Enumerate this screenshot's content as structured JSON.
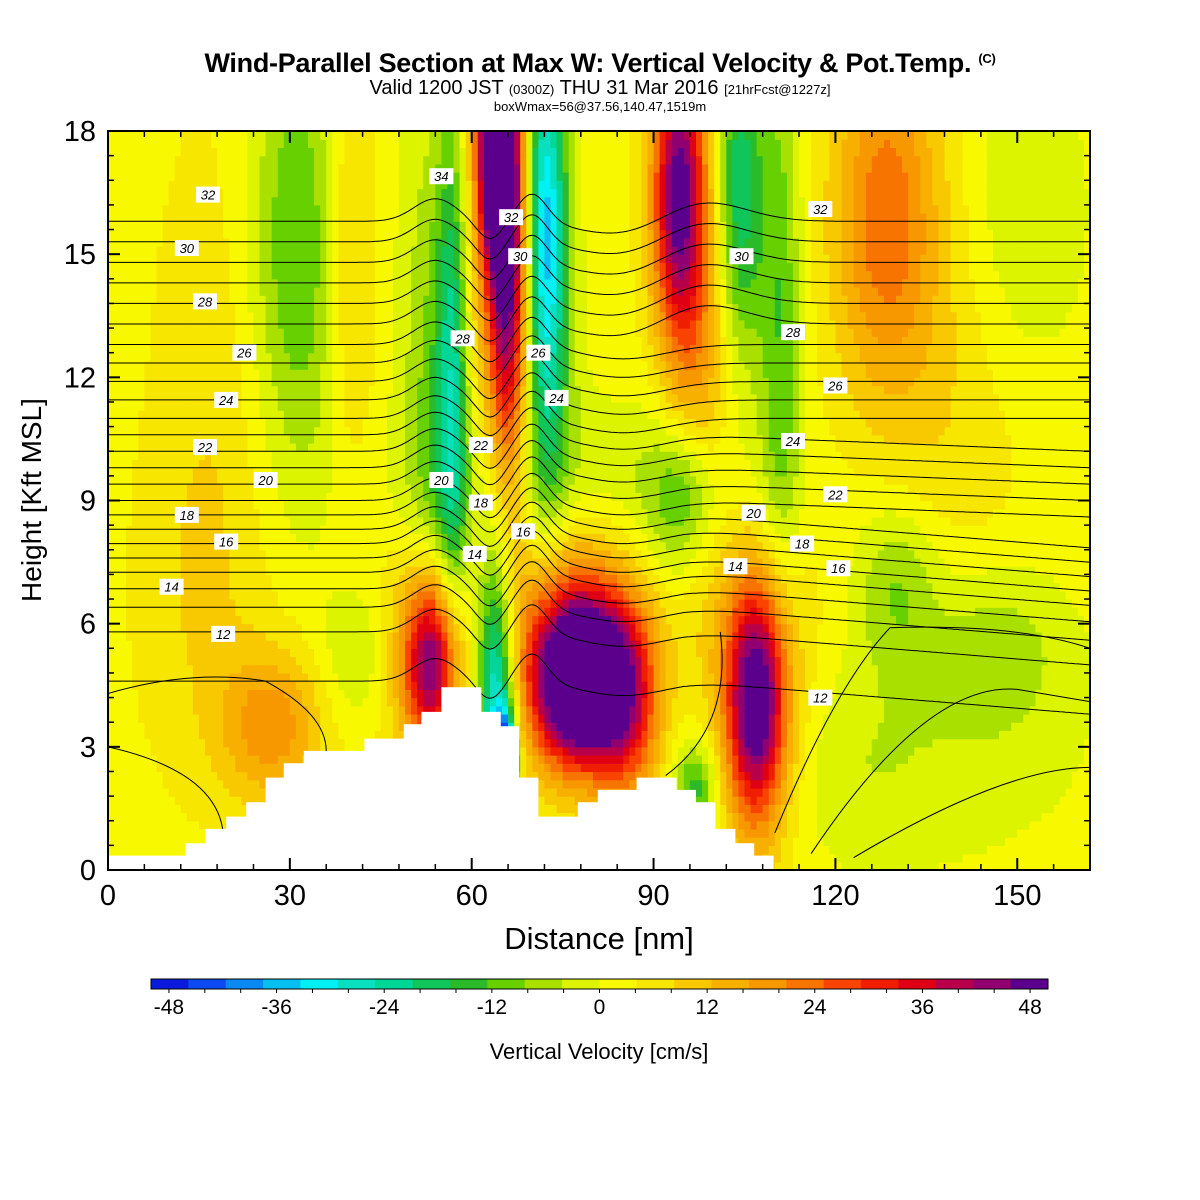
{
  "chart_data": {
    "type": "heatmap",
    "title": "Wind-Parallel Section at Max W: Vertical Velocity & Pot.Temp.",
    "title_mark": "(C)",
    "subtitle": {
      "prefix": "Valid 1200 JST",
      "utc": "(0300Z)",
      "date": "THU 31 Mar 2016",
      "forecast": "[21hrFcst@1227z]"
    },
    "box_info": "boxWmax=56@37.56,140.47,1519m",
    "xlabel": "Distance [nm]",
    "ylabel": "Height [Kft MSL]",
    "xlim": [
      0,
      162
    ],
    "ylim": [
      0,
      18
    ],
    "x_ticks": [
      0,
      30,
      60,
      90,
      120,
      150
    ],
    "y_ticks": [
      0,
      3,
      6,
      9,
      12,
      15,
      18
    ],
    "colorbar": {
      "label": "Vertical Velocity [cm/s]",
      "min": -50,
      "max": 50,
      "step": 4,
      "tick_values": [
        -48,
        -36,
        -24,
        -12,
        0,
        12,
        24,
        36,
        48
      ],
      "colors": [
        "#0a1adc",
        "#0a4af0",
        "#0a88f4",
        "#08c0f0",
        "#00f0f4",
        "#08e0c0",
        "#00d696",
        "#10c65a",
        "#2aba2a",
        "#66d000",
        "#aae000",
        "#dcf400",
        "#f8f800",
        "#f6e600",
        "#f8c800",
        "#f8b000",
        "#f89800",
        "#f87400",
        "#f84400",
        "#f01e00",
        "#e00014",
        "#b8004a",
        "#900070",
        "#5a008c"
      ]
    },
    "terrain": [
      [
        0,
        0.35
      ],
      [
        12.8,
        0.35
      ],
      [
        12.8,
        0.65
      ],
      [
        16,
        0.65
      ],
      [
        16,
        1.0
      ],
      [
        19.5,
        1.0
      ],
      [
        19.5,
        1.3
      ],
      [
        22.8,
        1.3
      ],
      [
        22.8,
        1.65
      ],
      [
        26,
        1.65
      ],
      [
        26,
        2.25
      ],
      [
        29,
        2.25
      ],
      [
        29,
        2.6
      ],
      [
        32.3,
        2.6
      ],
      [
        32.3,
        2.9
      ],
      [
        42.3,
        2.9
      ],
      [
        42.3,
        3.2
      ],
      [
        48.8,
        3.2
      ],
      [
        48.8,
        3.55
      ],
      [
        51.7,
        3.55
      ],
      [
        51.7,
        3.85
      ],
      [
        55,
        3.85
      ],
      [
        55,
        4.45
      ],
      [
        61.6,
        4.45
      ],
      [
        61.6,
        3.85
      ],
      [
        64.8,
        3.85
      ],
      [
        64.8,
        3.5
      ],
      [
        67.8,
        3.5
      ],
      [
        67.8,
        2.25
      ],
      [
        71,
        2.25
      ],
      [
        71,
        1.3
      ],
      [
        77.5,
        1.3
      ],
      [
        77.5,
        1.65
      ],
      [
        80.8,
        1.65
      ],
      [
        80.8,
        1.95
      ],
      [
        87.2,
        1.95
      ],
      [
        87.2,
        2.25
      ],
      [
        93.8,
        2.25
      ],
      [
        93.8,
        1.95
      ],
      [
        97,
        1.95
      ],
      [
        97,
        1.65
      ],
      [
        100.2,
        1.65
      ],
      [
        100.2,
        1.0
      ],
      [
        103.5,
        1.0
      ],
      [
        103.5,
        0.65
      ],
      [
        106.6,
        0.65
      ],
      [
        106.6,
        0.35
      ],
      [
        109.8,
        0.35
      ],
      [
        109.8,
        0
      ]
    ],
    "velocity_cells": [
      {
        "x": 78,
        "z": 4.6,
        "sx": 5,
        "sz": 1.3,
        "w": 56
      },
      {
        "x": 76,
        "z": 5.5,
        "sx": 7,
        "sz": 2.2,
        "w": 24
      },
      {
        "x": 53.5,
        "z": 5.0,
        "sx": 3.2,
        "sz": 1.5,
        "w": 40
      },
      {
        "x": 51,
        "z": 5.5,
        "sx": 5,
        "sz": 2.2,
        "w": 10
      },
      {
        "x": 107,
        "z": 4.0,
        "sx": 3.5,
        "sz": 2.0,
        "w": 44
      },
      {
        "x": 107,
        "z": 4.2,
        "sx": 7,
        "sz": 3.0,
        "w": 12
      },
      {
        "x": 86,
        "z": 4.0,
        "sx": 4,
        "sz": 1.8,
        "w": 26
      },
      {
        "x": 27,
        "z": 3.5,
        "sx": 6,
        "sz": 1.3,
        "w": 16
      },
      {
        "x": 64,
        "z": 4.4,
        "sx": 2.2,
        "sz": 2.4,
        "w": -34
      },
      {
        "x": 65.5,
        "z": 2.8,
        "sx": 1.2,
        "sz": 0.8,
        "w": -40
      },
      {
        "x": 97,
        "z": 2.0,
        "sx": 2.5,
        "sz": 0.8,
        "w": -16
      },
      {
        "x": 122,
        "z": 2.6,
        "sx": 25,
        "sz": 2.0,
        "w": -7
      },
      {
        "x": 146,
        "z": 5.5,
        "sx": 9,
        "sz": 1.5,
        "w": -9
      },
      {
        "x": 130,
        "z": 7.0,
        "sx": 5,
        "sz": 1.5,
        "w": -11
      },
      {
        "x": 95,
        "z": 9.0,
        "sx": 4,
        "sz": 1.3,
        "w": -14
      },
      {
        "x": 57,
        "z": 13.0,
        "sx": 2.0,
        "sz": 5.0,
        "w": -26
      },
      {
        "x": 54,
        "z": 11.5,
        "sx": 4,
        "sz": 6,
        "w": -12
      },
      {
        "x": 72,
        "z": 16.0,
        "sx": 2.4,
        "sz": 3.5,
        "w": -28
      },
      {
        "x": 73,
        "z": 13.0,
        "sx": 3,
        "sz": 4,
        "w": -12
      },
      {
        "x": 66,
        "z": 15.0,
        "sx": 2.4,
        "sz": 4.0,
        "w": 46
      },
      {
        "x": 64,
        "z": 17.5,
        "sx": 2.0,
        "sz": 1.8,
        "w": 50
      },
      {
        "x": 58.5,
        "z": 15.5,
        "sx": 3.0,
        "sz": 5.0,
        "w": 14
      },
      {
        "x": 94,
        "z": 16.5,
        "sx": 3.0,
        "sz": 2.5,
        "w": 40
      },
      {
        "x": 98,
        "z": 13.5,
        "sx": 4,
        "sz": 4,
        "w": 14
      },
      {
        "x": 104,
        "z": 16.5,
        "sx": 3.0,
        "sz": 3.0,
        "w": -24
      },
      {
        "x": 111,
        "z": 13.0,
        "sx": 2.5,
        "sz": 5,
        "w": -14
      },
      {
        "x": 128,
        "z": 16.0,
        "sx": 6,
        "sz": 3,
        "w": 18
      },
      {
        "x": 138,
        "z": 13.0,
        "sx": 10,
        "sz": 5,
        "w": 6
      },
      {
        "x": 150,
        "z": 16.0,
        "sx": 8,
        "sz": 3,
        "w": -8
      },
      {
        "x": 31,
        "z": 15.0,
        "sx": 6,
        "sz": 4,
        "w": -16
      },
      {
        "x": 40,
        "z": 15.0,
        "sx": 3,
        "sz": 4,
        "w": 10
      },
      {
        "x": 20,
        "z": 12.0,
        "sx": 8,
        "sz": 5,
        "w": 5
      },
      {
        "x": 78,
        "z": 9.5,
        "sx": 22,
        "sz": 1.5,
        "w": -7
      },
      {
        "x": 41,
        "z": 5.3,
        "sx": 4,
        "sz": 1.2,
        "w": -8
      },
      {
        "x": 14,
        "z": 6.5,
        "sx": 7,
        "sz": 3,
        "w": 4
      }
    ],
    "background_w": 0.5,
    "theta_contours": {
      "levels": [
        11,
        12,
        13,
        14,
        15,
        16,
        17,
        18,
        19,
        20,
        21,
        22,
        23,
        24,
        25,
        26,
        27,
        28,
        29,
        30,
        31,
        32,
        33,
        34,
        35
      ],
      "base_heights": [
        4.6,
        5.8,
        6.4,
        6.85,
        7.25,
        7.6,
        7.95,
        8.3,
        8.65,
        9.0,
        9.4,
        9.8,
        10.2,
        10.6,
        11.0,
        11.45,
        11.9,
        12.35,
        12.8,
        13.3,
        13.8,
        14.3,
        14.8,
        15.3,
        15.8
      ],
      "labels": [
        {
          "text": "12",
          "x": 19,
          "z": 5.75
        },
        {
          "text": "14",
          "x": 10.5,
          "z": 6.9
        },
        {
          "text": "16",
          "x": 19.5,
          "z": 8.0
        },
        {
          "text": "18",
          "x": 13,
          "z": 8.65
        },
        {
          "text": "20",
          "x": 26,
          "z": 9.5
        },
        {
          "text": "22",
          "x": 16,
          "z": 10.3
        },
        {
          "text": "24",
          "x": 19.5,
          "z": 11.45
        },
        {
          "text": "26",
          "x": 22.5,
          "z": 12.6
        },
        {
          "text": "28",
          "x": 16,
          "z": 13.85
        },
        {
          "text": "30",
          "x": 13,
          "z": 15.15
        },
        {
          "text": "32",
          "x": 16.5,
          "z": 16.45
        },
        {
          "text": "34",
          "x": 55,
          "z": 16.9
        },
        {
          "text": "32",
          "x": 66.5,
          "z": 15.9
        },
        {
          "text": "30",
          "x": 68,
          "z": 14.95
        },
        {
          "text": "28",
          "x": 58.5,
          "z": 12.95
        },
        {
          "text": "26",
          "x": 71,
          "z": 12.6
        },
        {
          "text": "24",
          "x": 74,
          "z": 11.5
        },
        {
          "text": "22",
          "x": 61.5,
          "z": 10.35
        },
        {
          "text": "20",
          "x": 55,
          "z": 9.5
        },
        {
          "text": "18",
          "x": 61.5,
          "z": 8.95
        },
        {
          "text": "16",
          "x": 68.5,
          "z": 8.25
        },
        {
          "text": "14",
          "x": 60.5,
          "z": 7.7
        },
        {
          "text": "14",
          "x": 103.5,
          "z": 7.4
        },
        {
          "text": "16",
          "x": 120.5,
          "z": 7.35
        },
        {
          "text": "18",
          "x": 114.5,
          "z": 7.95
        },
        {
          "text": "20",
          "x": 106.5,
          "z": 8.7
        },
        {
          "text": "22",
          "x": 120,
          "z": 9.15
        },
        {
          "text": "24",
          "x": 113,
          "z": 10.45
        },
        {
          "text": "26",
          "x": 120,
          "z": 11.8
        },
        {
          "text": "28",
          "x": 113,
          "z": 13.1
        },
        {
          "text": "30",
          "x": 104.5,
          "z": 14.95
        },
        {
          "text": "32",
          "x": 117.5,
          "z": 16.1
        },
        {
          "text": "12",
          "x": 117.5,
          "z": 4.2
        }
      ]
    }
  }
}
